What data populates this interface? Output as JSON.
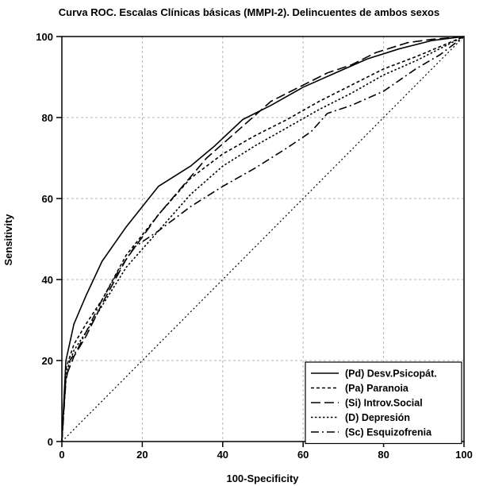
{
  "chart_data": {
    "type": "line",
    "title": "Curva ROC. Escalas Clínicas básicas (MMPI-2). Delincuentes de ambos sexos",
    "xlabel": "100-Specificity",
    "ylabel": "Sensitivity",
    "xlim": [
      0,
      100
    ],
    "ylim": [
      0,
      100
    ],
    "xticks": [
      0,
      20,
      40,
      60,
      80,
      100
    ],
    "yticks": [
      0,
      20,
      40,
      60,
      80,
      100
    ],
    "grid": true,
    "legend_position": "bottom-right",
    "series": [
      {
        "name": "(Pd) Desv.Psicopát.",
        "dash": "solid",
        "x": [
          0,
          1,
          3,
          6,
          10,
          16,
          24,
          32,
          38,
          45,
          52,
          60,
          68,
          76,
          84,
          92,
          100
        ],
        "y": [
          0,
          20,
          29,
          36,
          44.5,
          53,
          63,
          68,
          73,
          79.5,
          83,
          87.5,
          91,
          94.5,
          97,
          99,
          100
        ]
      },
      {
        "name": "(Pa) Paranoia",
        "dash": "dashed-short",
        "x": [
          0,
          1,
          3,
          6,
          10,
          16,
          24,
          32,
          40,
          48,
          56,
          64,
          72,
          80,
          88,
          94,
          100
        ],
        "y": [
          0,
          18,
          24,
          29,
          35,
          46,
          56,
          65,
          71,
          75.5,
          79.5,
          84,
          88,
          92,
          95,
          97.5,
          100
        ]
      },
      {
        "name": "(Si) Introv.Social",
        "dash": "dashed-long",
        "x": [
          0,
          1,
          3,
          6,
          10,
          16,
          24,
          30,
          36,
          44,
          52,
          60,
          66,
          72,
          78,
          86,
          92,
          100
        ],
        "y": [
          0,
          16,
          21,
          26,
          34,
          45,
          56,
          63,
          70,
          77,
          84,
          88,
          91,
          93,
          96,
          98.5,
          99.3,
          100
        ]
      },
      {
        "name": "(D) Depresión",
        "dash": "dotted",
        "x": [
          0,
          1,
          3,
          6,
          10,
          16,
          24,
          32,
          40,
          48,
          56,
          64,
          72,
          80,
          88,
          94,
          100
        ],
        "y": [
          0,
          17,
          22.5,
          27,
          33.5,
          43,
          52,
          61,
          68,
          73,
          77.5,
          82,
          86,
          90.5,
          94,
          97,
          100
        ]
      },
      {
        "name": "(Sc) Esquizofrenia",
        "dash": "dash-dot",
        "x": [
          0,
          1,
          2,
          4,
          6,
          10,
          14,
          18,
          24,
          32,
          40,
          48,
          56,
          62,
          66,
          72,
          80,
          88,
          94,
          100
        ],
        "y": [
          0,
          15,
          20,
          23,
          27,
          35,
          42,
          48,
          52,
          58,
          63,
          67.5,
          72.5,
          76.5,
          81,
          83,
          86.5,
          92,
          95.5,
          100
        ]
      },
      {
        "name": "",
        "dash": "reference",
        "x": [
          0,
          100
        ],
        "y": [
          0,
          100
        ]
      }
    ]
  }
}
